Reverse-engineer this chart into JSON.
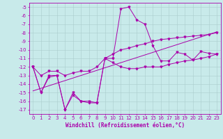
{
  "xlabel": "Windchill (Refroidissement éolien,°C)",
  "ylabel": "",
  "bg_color": "#c8eaea",
  "line_color": "#aa00aa",
  "grid_color": "#aacccc",
  "x_hours": [
    0,
    1,
    2,
    3,
    4,
    5,
    6,
    7,
    8,
    9,
    10,
    11,
    12,
    13,
    14,
    15,
    16,
    17,
    18,
    19,
    20,
    21,
    22,
    23
  ],
  "y_actual": [
    -12,
    -15,
    -13,
    -13,
    -17,
    -15,
    -16,
    -16,
    -16.2,
    -11,
    -11,
    -5.2,
    -5,
    -6.5,
    -7,
    -9.5,
    -11.3,
    -11.3,
    -10.3,
    -10.5,
    -11.2,
    -10.2,
    -10.4,
    -10.5
  ],
  "y_min": [
    -12,
    -15,
    -13.2,
    -13,
    -17,
    -15.3,
    -16,
    -16.2,
    -16.2,
    -11,
    -11.5,
    -12,
    -12.2,
    -12.2,
    -12,
    -12,
    -12,
    -11.7,
    -11.5,
    -11.3,
    -11.2,
    -11,
    -10.8,
    -10.5
  ],
  "y_max": [
    -12,
    -13,
    -12.5,
    -12.5,
    -13,
    -12.7,
    -12.5,
    -12.5,
    -12,
    -11,
    -10.5,
    -10,
    -9.8,
    -9.5,
    -9.3,
    -9,
    -8.8,
    -8.7,
    -8.6,
    -8.5,
    -8.4,
    -8.3,
    -8.2,
    -8.0
  ],
  "y_trend": [
    -14.8,
    -14.5,
    -14.2,
    -13.9,
    -13.6,
    -13.3,
    -13.0,
    -12.7,
    -12.4,
    -12.1,
    -11.8,
    -11.5,
    -11.2,
    -10.9,
    -10.6,
    -10.3,
    -10.0,
    -9.7,
    -9.4,
    -9.1,
    -8.8,
    -8.5,
    -8.2,
    -7.9
  ],
  "ylim": [
    -17.5,
    -4.5
  ],
  "xlim": [
    -0.5,
    23.5
  ],
  "yticks": [
    -17,
    -16,
    -15,
    -14,
    -13,
    -12,
    -11,
    -10,
    -9,
    -8,
    -7,
    -6,
    -5
  ],
  "xticks": [
    0,
    1,
    2,
    3,
    4,
    5,
    6,
    7,
    8,
    9,
    10,
    11,
    12,
    13,
    14,
    15,
    16,
    17,
    18,
    19,
    20,
    21,
    22,
    23
  ],
  "tick_fontsize": 5.0,
  "xlabel_fontsize": 5.5,
  "marker": "v",
  "markersize": 2.0,
  "linewidth": 0.7
}
